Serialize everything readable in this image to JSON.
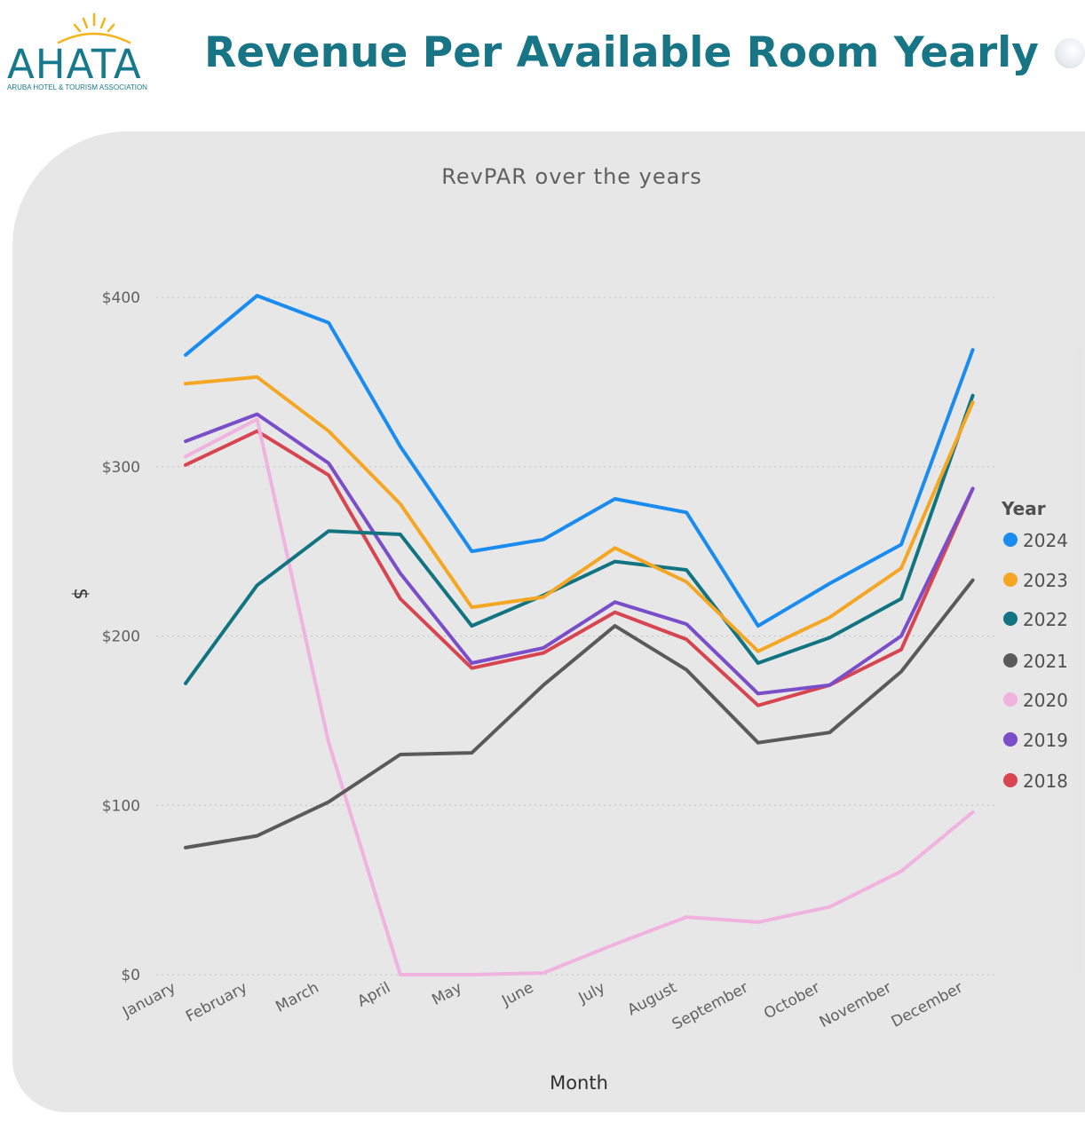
{
  "header": {
    "logo_text": "AHATA",
    "logo_subtitle": "ARUBA HOTEL & TOURISM ASSOCIATION",
    "title": "Revenue Per Available Room Yearly"
  },
  "colors": {
    "title": "#177585",
    "card_background": "#e7e7e7",
    "logo_sun": "#f2b418"
  },
  "chart_data": {
    "type": "line",
    "title": "RevPAR over the years",
    "xlabel": "Month",
    "ylabel": "$",
    "ylim": [
      0,
      400
    ],
    "yticks": [
      0,
      100,
      200,
      300,
      400
    ],
    "ytick_labels": [
      "$0",
      "$100",
      "$200",
      "$300",
      "$400"
    ],
    "grid": "horizontal dotted",
    "legend_title": "Year",
    "legend_position": "right",
    "categories": [
      "January",
      "February",
      "March",
      "April",
      "May",
      "June",
      "July",
      "August",
      "September",
      "October",
      "November",
      "December"
    ],
    "series": [
      {
        "name": "2024",
        "color": "#1a8cf0",
        "values": [
          366,
          401,
          385,
          312,
          250,
          257,
          281,
          273,
          206,
          231,
          254,
          369
        ]
      },
      {
        "name": "2023",
        "color": "#f5a623",
        "values": [
          349,
          353,
          321,
          278,
          217,
          223,
          252,
          232,
          191,
          211,
          240,
          338
        ]
      },
      {
        "name": "2022",
        "color": "#127480",
        "values": [
          172,
          230,
          262,
          260,
          206,
          224,
          244,
          239,
          184,
          199,
          222,
          342
        ]
      },
      {
        "name": "2021",
        "color": "#5a5a5a",
        "values": [
          75,
          82,
          102,
          130,
          131,
          171,
          206,
          180,
          137,
          143,
          179,
          233
        ]
      },
      {
        "name": "2020",
        "color": "#f0b2de",
        "values": [
          306,
          328,
          137,
          0,
          0,
          1,
          18,
          34,
          31,
          40,
          61,
          96
        ]
      },
      {
        "name": "2019",
        "color": "#7a4dc9",
        "values": [
          315,
          331,
          302,
          237,
          184,
          193,
          220,
          207,
          166,
          171,
          200,
          287
        ]
      },
      {
        "name": "2018",
        "color": "#d64550",
        "values": [
          301,
          321,
          295,
          222,
          181,
          190,
          214,
          198,
          159,
          171,
          192,
          287
        ]
      }
    ]
  }
}
